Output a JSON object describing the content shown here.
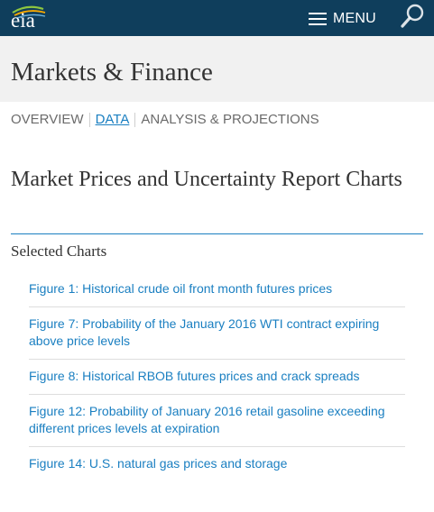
{
  "header": {
    "logo_text": "eia",
    "menu_label": "MENU",
    "icons": {
      "menu": "hamburger-icon",
      "search": "search-icon",
      "logo": "eia-logo"
    }
  },
  "page": {
    "title": "Markets & Finance"
  },
  "subnav": {
    "items": [
      {
        "label": "OVERVIEW",
        "active": false
      },
      {
        "label": "DATA",
        "active": true
      },
      {
        "label": "ANALYSIS & PROJECTIONS",
        "active": false
      }
    ]
  },
  "content": {
    "section_title": "Market Prices and Uncertainty Report Charts",
    "subsection_title": "Selected Charts",
    "charts": [
      "Figure 1: Historical crude oil front month futures prices",
      "Figure 7: Probability of the January 2016 WTI contract expiring above price levels",
      "Figure 8: Historical RBOB futures prices and crack spreads",
      "Figure 12: Probability of January 2016 retail gasoline exceeding different prices levels at expiration",
      "Figure 14: U.S. natural gas prices and storage"
    ]
  },
  "colors": {
    "header_bg": "#0f3e5c",
    "link": "#1a7fc1",
    "title_bg": "#f1f1f1"
  }
}
